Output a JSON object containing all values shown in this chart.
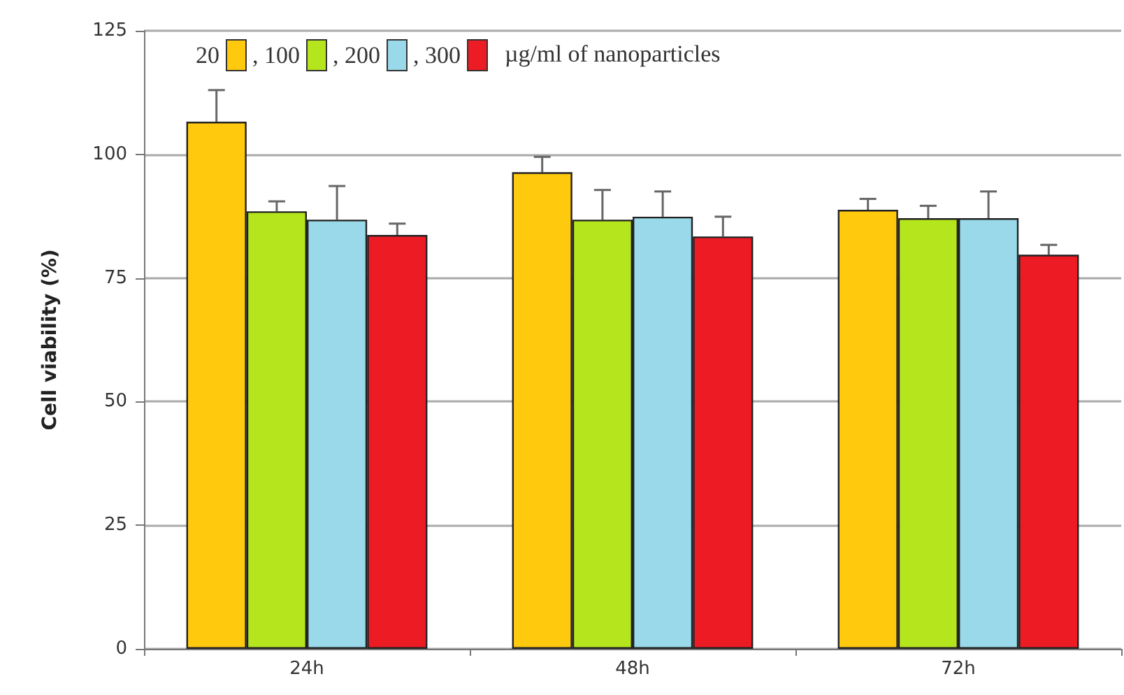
{
  "chart_data": {
    "type": "bar",
    "ylabel": "Cell viability (%)",
    "legend_title": "µg/ml of nanoparticles",
    "categories": [
      "24h",
      "48h",
      "72h"
    ],
    "series": [
      {
        "name": "20",
        "color": "#ffc90e",
        "values": [
          106.6,
          96.4,
          88.8
        ],
        "errors": [
          [
            106.6,
            113
          ],
          [
            96.4,
            99.5
          ],
          [
            88.8,
            91
          ]
        ]
      },
      {
        "name": ", 100",
        "color": "#b5e61d",
        "values": [
          88.5,
          86.8,
          87.1
        ],
        "errors": [
          [
            88.5,
            90.5
          ],
          [
            86.8,
            92.8
          ],
          [
            87.1,
            89.6
          ]
        ]
      },
      {
        "name": ", 200",
        "color": "#99d9ea",
        "values": [
          86.8,
          87.4,
          87.1
        ],
        "errors": [
          [
            86.8,
            93.6
          ],
          [
            87.4,
            92.5
          ],
          [
            87.1,
            92.5
          ]
        ]
      },
      {
        "name": ", 300",
        "color": "#ed1c24",
        "values": [
          83.7,
          83.4,
          79.7
        ],
        "errors": [
          [
            83.7,
            86
          ],
          [
            83.4,
            87.4
          ],
          [
            79.7,
            81.7
          ]
        ]
      }
    ],
    "ylim": [
      0,
      125
    ],
    "yticks": [
      0,
      25,
      50,
      75,
      100,
      125
    ],
    "grid": "y",
    "legend": "top"
  }
}
